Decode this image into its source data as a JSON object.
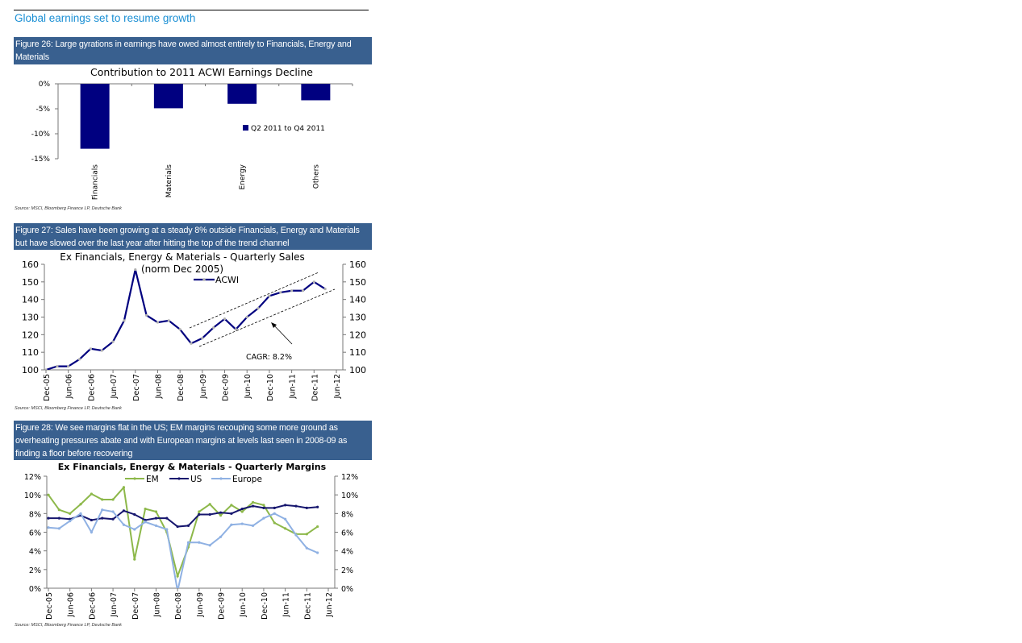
{
  "section_title": "Global earnings set to resume growth",
  "figures": [
    {
      "header": "Figure 26: Large gyrations in earnings have owed almost entirely to Financials, Energy and Materials",
      "source": "Source: MSCI, Bloomberg Finance LP, Deutsche Bank"
    },
    {
      "header": "Figure 27: Sales have been growing at a steady 8% outside Financials, Energy and Materials but have slowed over the last year after hitting the top of the trend channel",
      "source": "Source: MSCI, Bloomberg Finance LP, Deutsche Bank"
    },
    {
      "header": "Figure 28: We see margins flat in the US; EM margins recouping some more ground as overheating pressures abate and with European margins at levels last seen in 2008-09 as finding a floor before recovering",
      "source": "Source: MSCI, Bloomberg Finance LP, Deutsche Bank"
    }
  ],
  "chart_data": [
    {
      "type": "bar",
      "title": "Contribution to 2011 ACWI Earnings Decline",
      "categories": [
        "Financials",
        "Materials",
        "Energy",
        "Others"
      ],
      "series": [
        {
          "name": "Q2 2011  to  Q4 2011",
          "values": [
            -13.0,
            -4.9,
            -4.0,
            -3.3
          ],
          "color": "#000080"
        }
      ],
      "yticks": [
        "0%",
        "-5%",
        "-10%",
        "-15%"
      ],
      "ylim": [
        -15,
        0
      ],
      "legend": "right",
      "grid": false
    },
    {
      "type": "line",
      "title": "Ex Financials, Energy & Materials - Quarterly Sales",
      "subtitle": "(norm Dec 2005)",
      "x": [
        "Dec-05",
        "Mar-06",
        "Jun-06",
        "Sep-06",
        "Dec-06",
        "Mar-07",
        "Jun-07",
        "Sep-07",
        "Dec-07",
        "Mar-08",
        "Jun-08",
        "Sep-08",
        "Dec-08",
        "Mar-09",
        "Jun-09",
        "Sep-09",
        "Dec-09",
        "Mar-10",
        "Jun-10",
        "Sep-10",
        "Dec-10",
        "Mar-11",
        "Jun-11",
        "Sep-11",
        "Dec-11",
        "Mar-12"
      ],
      "xticks": [
        "Dec-05",
        "Jun-06",
        "Dec-06",
        "Jun-07",
        "Dec-07",
        "Jun-08",
        "Dec-08",
        "Jun-09",
        "Dec-09",
        "Jun-10",
        "Dec-10",
        "Jun-11",
        "Dec-11",
        "Jun-12"
      ],
      "series": [
        {
          "name": "ACWI",
          "values": [
            100,
            102,
            102,
            106,
            112,
            111,
            116,
            128,
            157,
            131,
            127,
            128,
            123,
            115,
            118,
            124,
            129,
            123,
            130,
            135,
            142,
            144,
            145,
            145,
            150,
            146
          ],
          "color": "#00007f",
          "marker_color": "#b0b0b0"
        }
      ],
      "yticks": [
        "100",
        "110",
        "120",
        "130",
        "140",
        "150",
        "160"
      ],
      "ylim": [
        100,
        160
      ],
      "annotation": "CAGR: 8.2%",
      "legend": "top-center",
      "grid": false
    },
    {
      "type": "line",
      "title": "Ex Financials, Energy & Materials - Quarterly Margins",
      "x": [
        "Dec-05",
        "Mar-06",
        "Jun-06",
        "Sep-06",
        "Dec-06",
        "Mar-07",
        "Jun-07",
        "Sep-07",
        "Dec-07",
        "Mar-08",
        "Jun-08",
        "Sep-08",
        "Dec-08",
        "Mar-09",
        "Jun-09",
        "Sep-09",
        "Dec-09",
        "Mar-10",
        "Jun-10",
        "Sep-10",
        "Dec-10",
        "Mar-11",
        "Jun-11",
        "Sep-11",
        "Dec-11",
        "Mar-12"
      ],
      "xticks": [
        "Dec-05",
        "Jun-06",
        "Dec-06",
        "Jun-07",
        "Dec-07",
        "Jun-08",
        "Dec-08",
        "Jun-09",
        "Dec-09",
        "Jun-10",
        "Dec-10",
        "Jun-11",
        "Dec-11",
        "Jun-12"
      ],
      "series": [
        {
          "name": "EM",
          "values": [
            10.0,
            8.4,
            8.0,
            9.0,
            10.1,
            9.5,
            9.5,
            10.8,
            3.1,
            8.5,
            8.2,
            6.0,
            1.3,
            4.4,
            8.2,
            9.0,
            7.8,
            8.9,
            8.2,
            9.2,
            8.9,
            7.0,
            6.4,
            5.8,
            5.8,
            6.6
          ],
          "color": "#8db84a"
        },
        {
          "name": "US",
          "values": [
            7.5,
            7.5,
            7.4,
            7.8,
            7.3,
            7.5,
            7.4,
            8.3,
            7.9,
            7.3,
            7.5,
            7.5,
            6.6,
            6.7,
            7.9,
            7.9,
            8.1,
            8.0,
            8.5,
            8.8,
            8.6,
            8.6,
            8.9,
            8.8,
            8.6,
            8.7
          ],
          "color": "#16166e"
        },
        {
          "name": "Europe",
          "values": [
            6.5,
            6.4,
            7.2,
            8.0,
            6.0,
            8.4,
            8.2,
            6.8,
            6.3,
            7.1,
            6.7,
            6.3,
            -0.3,
            4.9,
            4.9,
            4.6,
            5.5,
            6.8,
            6.9,
            6.7,
            7.5,
            8.0,
            7.4,
            5.7,
            4.3,
            3.8
          ],
          "color": "#8fb1e3"
        }
      ],
      "yticks": [
        "0%",
        "2%",
        "4%",
        "6%",
        "8%",
        "10%",
        "12%"
      ],
      "ylim": [
        0,
        12
      ],
      "legend": "top-center",
      "grid": false
    }
  ]
}
